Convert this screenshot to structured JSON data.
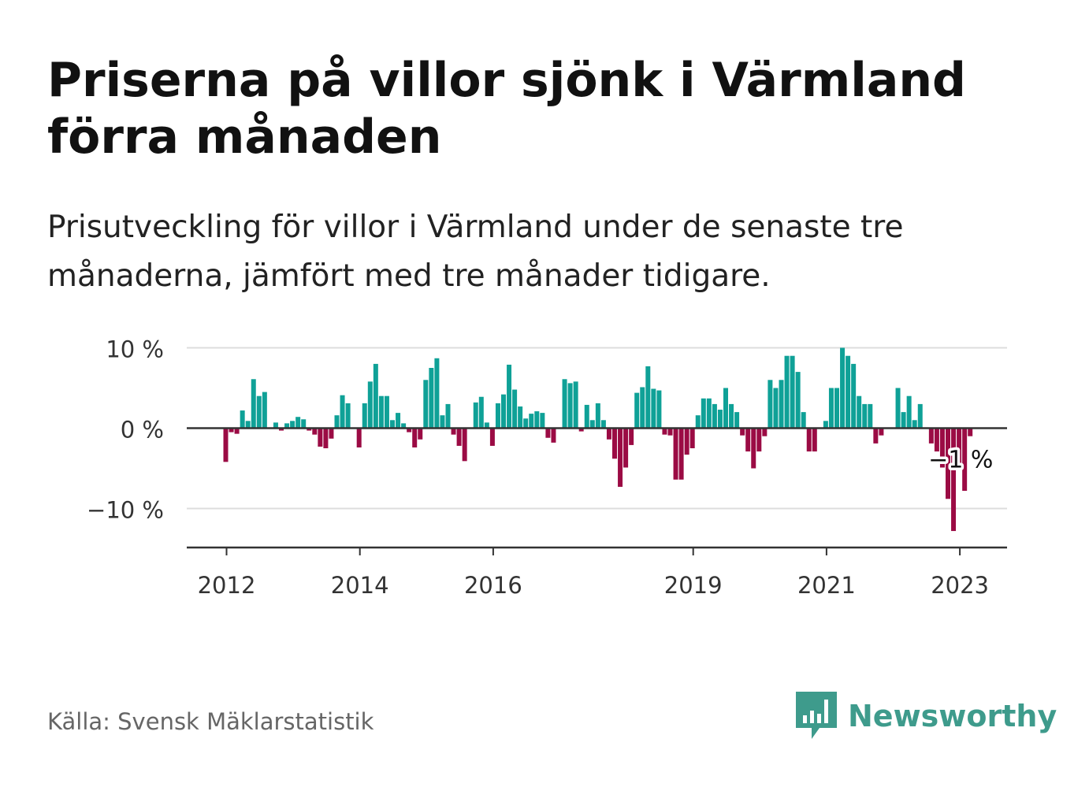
{
  "title": "Priserna på villor sjönk i Värmland förra månaden",
  "subtitle": "Prisutveckling för villor i Värmland under de senaste tre månaderna, jämfört med tre månader tidigare.",
  "source": "Källa: Svensk Mäklarstatistik",
  "brand": "Newsworthy",
  "colors": {
    "positive": "#0fa197",
    "negative": "#9b0b44",
    "brand": "#3e9b8c",
    "grid": "#dddddd",
    "axis": "#333333"
  },
  "chart_data": {
    "type": "bar",
    "x_start": "2012-01",
    "x_ticks": [
      "2012",
      "2014",
      "2016",
      "2019",
      "2021",
      "2023"
    ],
    "y_ticks": [
      {
        "value": 10,
        "label": "10 %"
      },
      {
        "value": 0,
        "label": "0 %"
      },
      {
        "value": -10,
        "label": "−10 %"
      }
    ],
    "ylim": [
      -15,
      10
    ],
    "grid": true,
    "annotation": {
      "label": "−1 %",
      "value": -1
    },
    "values": [
      -4.2,
      -0.5,
      -0.7,
      2.2,
      0.9,
      6.1,
      4.0,
      4.5,
      0,
      0.7,
      -0.3,
      0.6,
      0.9,
      1.4,
      1.1,
      -0.3,
      -0.8,
      -2.3,
      -2.5,
      -1.3,
      1.6,
      4.1,
      3.1,
      0,
      -2.4,
      3.1,
      5.8,
      8.0,
      4.0,
      4.0,
      1.0,
      1.9,
      0.6,
      -0.5,
      -2.4,
      -1.4,
      6.0,
      7.5,
      8.7,
      1.6,
      3.0,
      -0.8,
      -2.2,
      -4.1,
      0,
      3.2,
      3.9,
      0.7,
      -2.2,
      3.1,
      4.2,
      7.9,
      4.8,
      2.7,
      1.2,
      1.8,
      2.1,
      1.9,
      -1.2,
      -1.8,
      0,
      6.1,
      5.6,
      5.8,
      -0.4,
      2.9,
      1.0,
      3.1,
      1.0,
      -1.4,
      -3.8,
      -7.3,
      -4.9,
      -2.1,
      4.4,
      5.1,
      7.7,
      4.9,
      4.7,
      -0.8,
      -0.9,
      -6.4,
      -6.4,
      -3.3,
      -2.5,
      1.6,
      3.7,
      3.7,
      3.0,
      2.3,
      5.0,
      3.0,
      2.0,
      -0.9,
      -2.9,
      -5.0,
      -2.9,
      -1.0,
      6.0,
      5.0,
      6.0,
      9.0,
      9.0,
      7.0,
      2.0,
      -2.9,
      -2.9,
      0,
      0.9,
      5.0,
      5.0,
      10.0,
      9.0,
      8.0,
      4.0,
      3.0,
      3.0,
      -1.9,
      -0.9,
      0,
      0,
      5.0,
      2.0,
      4.0,
      1.0,
      3.0,
      0,
      -1.9,
      -2.9,
      -4.9,
      -8.8,
      -12.8,
      -4.9,
      -7.8,
      -1.0
    ]
  }
}
